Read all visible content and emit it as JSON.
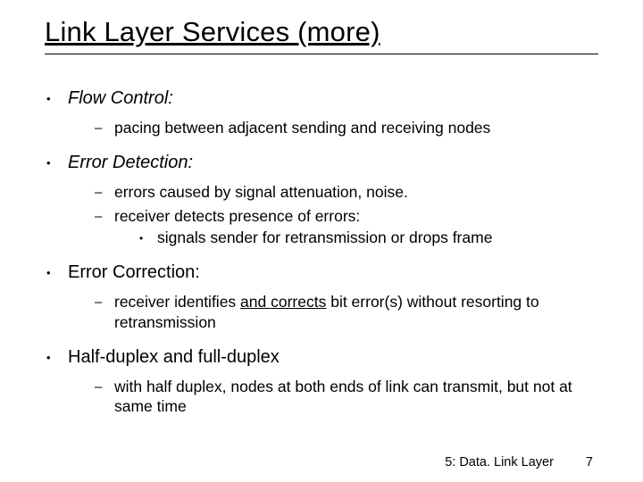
{
  "title": "Link Layer Services (more)",
  "items": [
    {
      "label": "Flow Control:",
      "italic": true,
      "sub": [
        {
          "text": "pacing between adjacent sending and receiving nodes"
        }
      ]
    },
    {
      "label": "Error Detection:",
      "italic": true,
      "sub": [
        {
          "text": "errors caused by signal attenuation, noise."
        },
        {
          "text": "receiver detects presence of errors:",
          "subsub": [
            "signals sender for retransmission or drops frame"
          ]
        }
      ]
    },
    {
      "label": "Error Correction:",
      "italic": false,
      "sub": [
        {
          "pre": "receiver identifies ",
          "underlined": "and corrects",
          "post": " bit error(s) without resorting to retransmission"
        }
      ]
    },
    {
      "label": "Half-duplex and full-duplex",
      "italic": false,
      "sub": [
        {
          "text": "with half duplex, nodes at both ends of link can transmit, but not at same time"
        }
      ]
    }
  ],
  "footer_label": "5: Data. Link Layer",
  "page_number": "7",
  "colors": {
    "background": "#ffffff",
    "text": "#000000"
  },
  "fonts": {
    "title_size": 31,
    "top_size": 20,
    "sub_size": 17.5,
    "footer_size": 14.5
  }
}
